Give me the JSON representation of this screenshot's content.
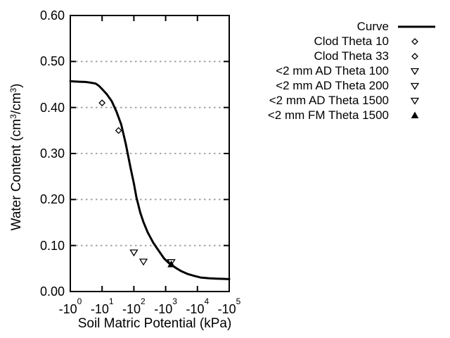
{
  "chart_data": {
    "type": "line",
    "title": "",
    "xlabel": "Soil Matric Potential (kPa)",
    "ylabel": {
      "pre": "Water Content (cm",
      "sup1": "3",
      "mid": "/cm",
      "sup2": "3",
      "post": ")"
    },
    "x_axis": {
      "scale": "negative-log10",
      "tick_base": "-10",
      "tick_exponents": [
        "0",
        "1",
        "2",
        "3",
        "4",
        "5"
      ],
      "range_decades": [
        0,
        5
      ]
    },
    "y_axis": {
      "min": 0.0,
      "max": 0.6,
      "tick_labels": [
        "0.00",
        "0.10",
        "0.20",
        "0.30",
        "0.40",
        "0.50",
        "0.60"
      ],
      "tick_values": [
        0.0,
        0.1,
        0.2,
        0.3,
        0.4,
        0.5,
        0.6
      ],
      "gridlines_at": [
        0.1,
        0.2,
        0.3,
        0.4,
        0.5
      ],
      "grid_style": "dashed"
    },
    "legend_position": "top-right-outside",
    "curve": {
      "label": "Curve",
      "style": "solid-line",
      "points": [
        [
          -1,
          0.457
        ],
        [
          -2,
          0.456
        ],
        [
          -3,
          0.4555
        ],
        [
          -4,
          0.4545
        ],
        [
          -6.3,
          0.452
        ],
        [
          -8,
          0.447
        ],
        [
          -10,
          0.44
        ],
        [
          -14,
          0.429
        ],
        [
          -20,
          0.414
        ],
        [
          -28,
          0.392
        ],
        [
          -40,
          0.363
        ],
        [
          -56,
          0.32
        ],
        [
          -79,
          0.268
        ],
        [
          -100,
          0.235
        ],
        [
          -120,
          0.205
        ],
        [
          -158,
          0.172
        ],
        [
          -200,
          0.151
        ],
        [
          -270,
          0.129
        ],
        [
          -400,
          0.107
        ],
        [
          -500,
          0.097
        ],
        [
          -630,
          0.087
        ],
        [
          -890,
          0.072
        ],
        [
          -1260,
          0.062
        ],
        [
          -1580,
          0.057
        ],
        [
          -2240,
          0.05
        ],
        [
          -3160,
          0.044
        ],
        [
          -5000,
          0.038
        ],
        [
          -7940,
          0.034
        ],
        [
          -12600,
          0.0305
        ],
        [
          -22400,
          0.029
        ],
        [
          -39800,
          0.028
        ],
        [
          -63000,
          0.0275
        ],
        [
          -100000,
          0.027
        ]
      ]
    },
    "series": [
      {
        "label": "Clod Theta 10",
        "marker": "diamond-open",
        "points": [
          [
            -10,
            0.41
          ]
        ]
      },
      {
        "label": "Clod Theta 33",
        "marker": "diamond-open",
        "points": [
          [
            -33,
            0.35
          ]
        ]
      },
      {
        "label": "<2 mm AD Theta 100",
        "marker": "triangle-down-open",
        "points": [
          [
            -100,
            0.085
          ]
        ]
      },
      {
        "label": "<2 mm AD Theta 200",
        "marker": "triangle-down-open",
        "points": [
          [
            -200,
            0.065
          ]
        ]
      },
      {
        "label": "<2 mm AD Theta 1500",
        "marker": "triangle-down-open",
        "points": [
          [
            -1500,
            0.064
          ]
        ]
      },
      {
        "label": "<2 mm FM Theta 1500",
        "marker": "triangle-up-filled",
        "points": [
          [
            -1500,
            0.059
          ]
        ]
      }
    ],
    "colors": {
      "line": "#000000",
      "grid": "#9e9e9e",
      "text": "#000000",
      "background": "#ffffff",
      "marker_open_fill": "#ffffff"
    }
  }
}
